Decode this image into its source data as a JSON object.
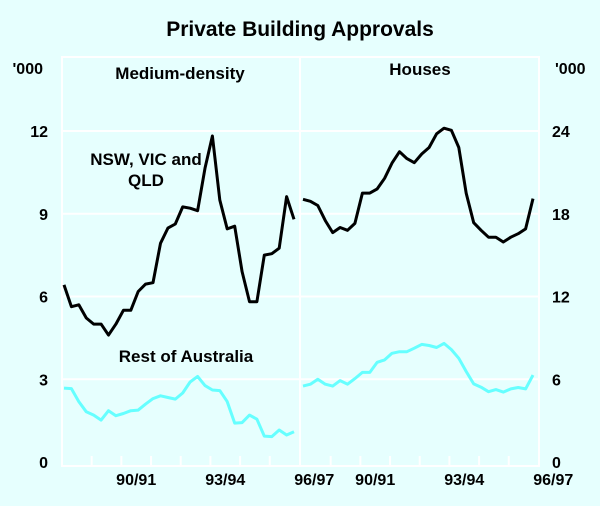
{
  "chart_data": {
    "type": "line",
    "title": "Private Building Approvals",
    "colors": {
      "background": "#e6fffe",
      "grid": "#ffffff",
      "nsw_vic_qld": "#000000",
      "rest_of_australia": "#66ffff"
    },
    "grid": true,
    "panels": [
      {
        "title": "Medium-density",
        "y_unit": "'000",
        "y_axis_side": "left",
        "ylim": [
          0,
          12
        ],
        "y_ticks": [
          "0",
          "3",
          "6",
          "9",
          "12"
        ],
        "x_tick_labels": [
          "90/91",
          "93/94",
          "96/97"
        ],
        "series": [
          {
            "name": "NSW, VIC and QLD",
            "values": [
              6.42,
              5.63,
              5.7,
              5.22,
              5.0,
              5.0,
              4.6,
              5.0,
              5.5,
              5.5,
              6.18,
              6.45,
              6.5,
              7.93,
              8.48,
              8.63,
              9.25,
              9.2,
              9.11,
              10.65,
              11.82,
              9.5,
              8.45,
              8.55,
              6.9,
              5.81,
              5.81,
              7.5,
              7.55,
              7.75,
              9.62,
              8.8
            ]
          },
          {
            "name": "Rest of Australia",
            "values": [
              2.68,
              2.66,
              2.19,
              1.82,
              1.7,
              1.52,
              1.86,
              1.68,
              1.76,
              1.86,
              1.88,
              2.1,
              2.3,
              2.4,
              2.34,
              2.28,
              2.5,
              2.9,
              3.1,
              2.77,
              2.61,
              2.59,
              2.19,
              1.41,
              1.43,
              1.7,
              1.55,
              0.94,
              0.92,
              1.16,
              0.98,
              1.1
            ]
          }
        ]
      },
      {
        "title": "Houses",
        "y_unit": "'000",
        "y_axis_side": "right",
        "ylim": [
          0,
          24
        ],
        "y_ticks": [
          "0",
          "6",
          "12",
          "18",
          "24"
        ],
        "x_tick_labels": [
          "90/91",
          "93/94",
          "96/97"
        ],
        "series": [
          {
            "name": "NSW, VIC and QLD",
            "values": [
              19.05,
              18.9,
              18.6,
              17.5,
              16.63,
              17.0,
              16.8,
              17.3,
              19.5,
              19.5,
              19.8,
              20.57,
              21.67,
              22.5,
              22.0,
              21.7,
              22.33,
              22.8,
              23.8,
              24.2,
              24.05,
              22.8,
              19.48,
              17.35,
              16.8,
              16.3,
              16.3,
              15.95,
              16.3,
              16.55,
              16.9,
              19.1
            ]
          },
          {
            "name": "Rest of Australia",
            "values": [
              5.5,
              5.64,
              6.0,
              5.64,
              5.5,
              5.9,
              5.64,
              6.05,
              6.5,
              6.5,
              7.23,
              7.4,
              7.88,
              8.0,
              8.0,
              8.25,
              8.53,
              8.45,
              8.3,
              8.6,
              8.15,
              7.52,
              6.56,
              5.66,
              5.42,
              5.1,
              5.25,
              5.07,
              5.3,
              5.4,
              5.3,
              6.3
            ]
          }
        ]
      }
    ]
  }
}
